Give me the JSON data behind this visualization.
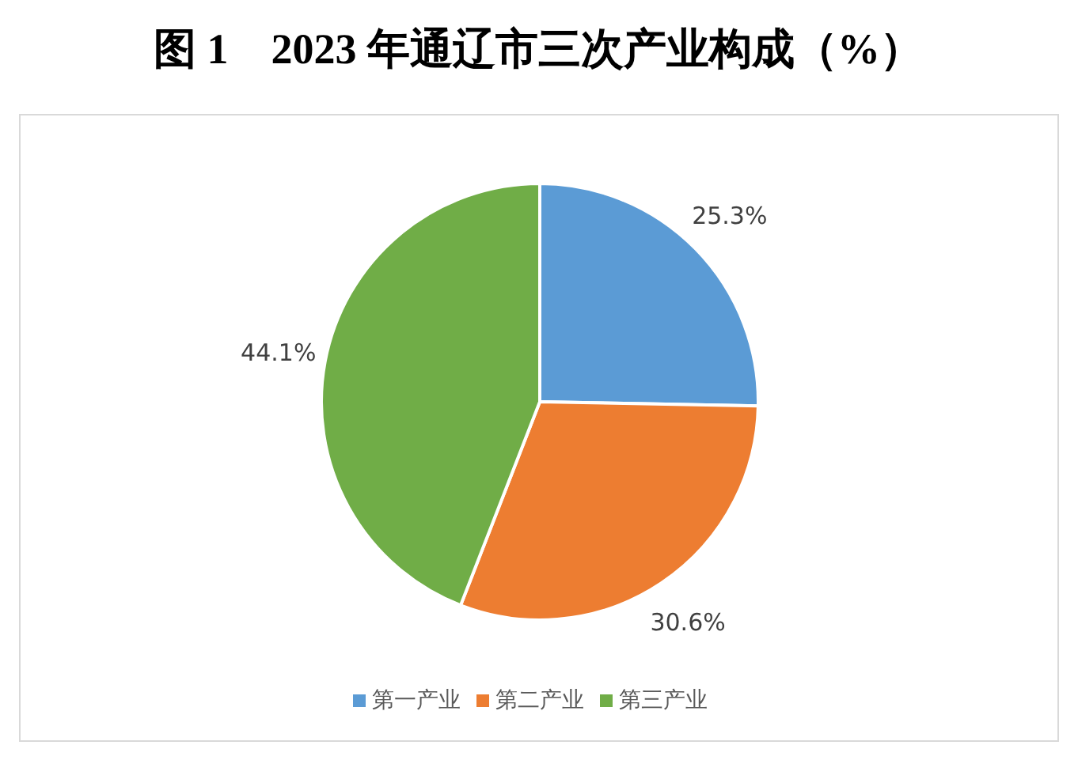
{
  "chart_data": {
    "type": "pie",
    "title": "图 1　2023 年通辽市三次产业构成（%）",
    "categories": [
      "第一产业",
      "第二产业",
      "第三产业"
    ],
    "values": [
      25.3,
      30.6,
      44.1
    ],
    "colors": [
      "#5b9bd5",
      "#ed7d31",
      "#70ad47"
    ],
    "value_labels": [
      "25.3%",
      "30.6%",
      "44.1%"
    ],
    "legend": "bottom"
  }
}
